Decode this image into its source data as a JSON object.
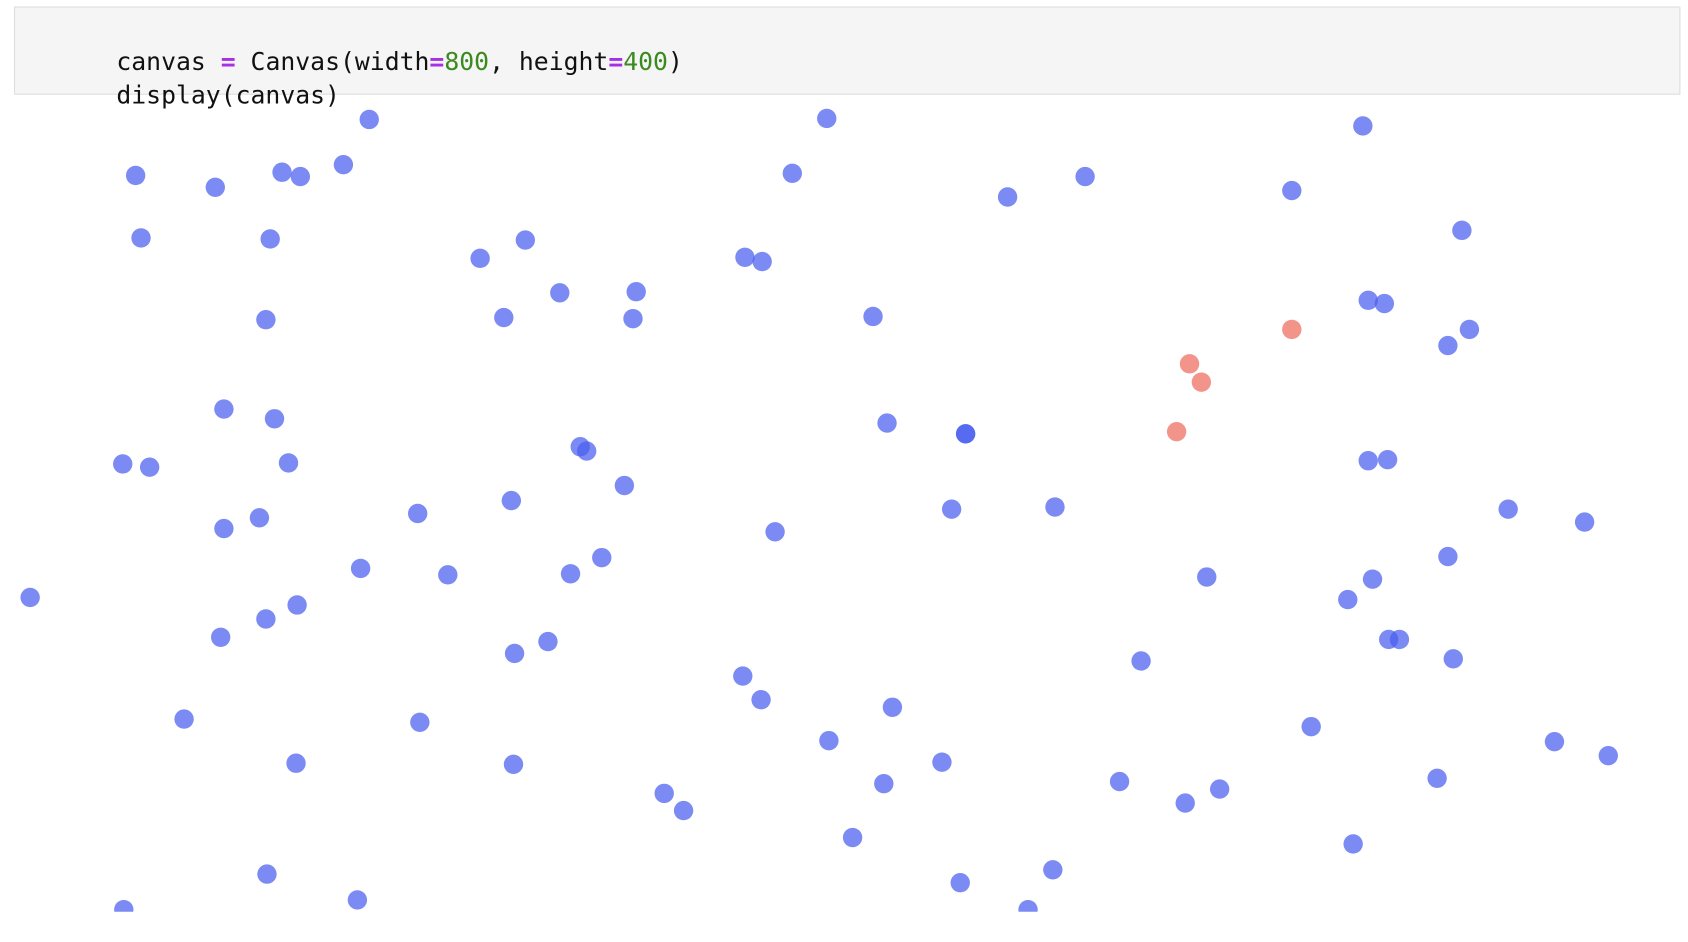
{
  "code": {
    "lines": [
      [
        "canvas ",
        "=",
        " Canvas(width",
        "=",
        "800",
        ", height",
        "=",
        "400",
        ")"
      ],
      [
        "display(canvas)"
      ]
    ]
  }
}
